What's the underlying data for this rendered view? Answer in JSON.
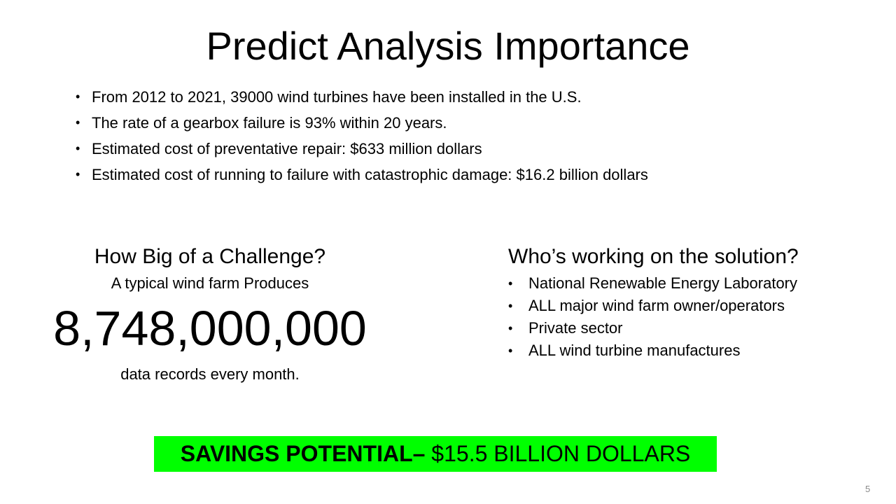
{
  "title": "Predict Analysis Importance",
  "top_bullets": [
    "From 2012 to 2021, 39000 wind turbines have been installed in the U.S.",
    "The rate of a gearbox failure is 93% within 20 years.",
    "Estimated cost of preventative repair:  $633 million dollars",
    "Estimated cost of running to failure with catastrophic damage:  $16.2 billion dollars"
  ],
  "challenge": {
    "heading": "How Big of a Challenge?",
    "subtitle": "A typical wind farm Produces",
    "number": "8,748,000,000",
    "footer": "data records every month."
  },
  "solution": {
    "heading": "Who’s working on the solution?",
    "items": [
      "National Renewable Energy Laboratory",
      "ALL major wind farm owner/operators",
      "Private sector",
      "ALL wind turbine manufactures"
    ]
  },
  "banner": {
    "strong": "SAVINGS POTENTIAL–",
    "rest": " $15.5 BILLION DOLLARS",
    "color": "#00ff00"
  },
  "page_number": "5",
  "bullet_glyph": "•"
}
